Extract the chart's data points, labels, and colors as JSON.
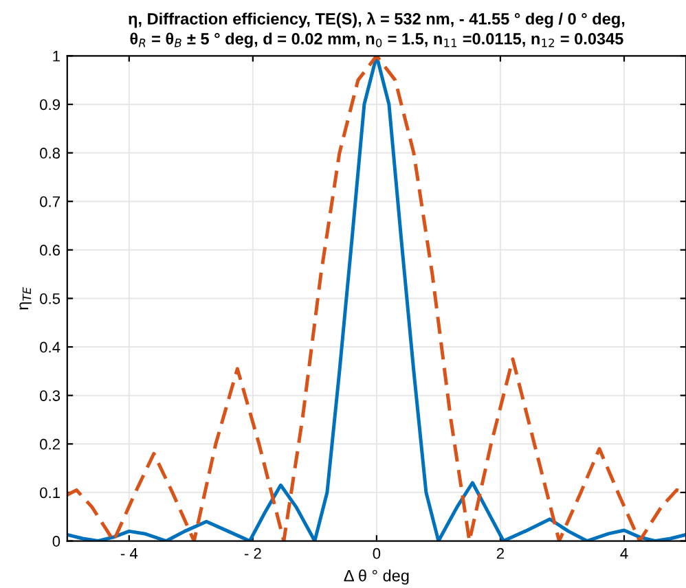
{
  "chart_data": {
    "type": "line",
    "title": "η, Diffraction efficiency, TE(S), λ = 532 nm, - 41.55 ° deg / 0 ° deg,\nθ$_{R}$ = θ$_{B}$ ± 5 ° deg, d = 0.02 mm, n$_{0}$ = 1.5, n$_{11}$ =0.0115, n$_{12}$ = 0.0345",
    "xlabel": "Δ θ ° deg",
    "ylabel": "η$_{TE}$",
    "series": [
      {
        "color": "#0072bd",
        "line_style": "solid",
        "x": [
          -5,
          -4.75,
          -4.5,
          -4.25,
          -4.0,
          -3.75,
          -3.4,
          -3.1,
          -2.75,
          -2.4,
          -2.05,
          -1.8,
          -1.55,
          -1.3,
          -1.0,
          -0.8,
          -0.6,
          -0.4,
          -0.2,
          0,
          0.2,
          0.4,
          0.6,
          0.8,
          1.0,
          1.3,
          1.55,
          1.8,
          2.05,
          2.4,
          2.8,
          3.1,
          3.4,
          3.75,
          4.0,
          4.25,
          4.5,
          4.75,
          5
        ],
        "values": [
          0.013,
          0.005,
          0.0,
          0.008,
          0.02,
          0.015,
          0.0,
          0.02,
          0.04,
          0.02,
          0.0,
          0.06,
          0.115,
          0.07,
          0.0,
          0.1,
          0.35,
          0.62,
          0.9,
          1.0,
          0.9,
          0.62,
          0.35,
          0.1,
          0.0,
          0.07,
          0.12,
          0.06,
          0.0,
          0.02,
          0.045,
          0.02,
          0.0,
          0.015,
          0.022,
          0.008,
          0.0,
          0.005,
          0.013
        ]
      },
      {
        "color": "#d95319",
        "line_style": "dashed",
        "x": [
          -5,
          -4.85,
          -4.6,
          -4.25,
          -3.9,
          -3.6,
          -3.3,
          -2.95,
          -2.6,
          -2.25,
          -1.9,
          -1.5,
          -1.2,
          -0.9,
          -0.6,
          -0.3,
          0,
          0.3,
          0.6,
          0.9,
          1.2,
          1.5,
          1.85,
          2.2,
          2.55,
          2.95,
          3.3,
          3.6,
          3.9,
          4.25,
          4.6,
          4.85,
          5
        ],
        "values": [
          0.095,
          0.105,
          0.07,
          0.0,
          0.1,
          0.18,
          0.1,
          0.0,
          0.2,
          0.355,
          0.2,
          0.0,
          0.25,
          0.55,
          0.8,
          0.95,
          1.0,
          0.95,
          0.8,
          0.55,
          0.25,
          0.0,
          0.2,
          0.375,
          0.2,
          0.0,
          0.1,
          0.19,
          0.1,
          0.0,
          0.07,
          0.105,
          0.1
        ]
      }
    ],
    "xlim": [
      -5,
      5
    ],
    "ylim": [
      0,
      1
    ],
    "xticks": [
      {
        "value": -4,
        "label": "- 4"
      },
      {
        "value": -2,
        "label": "- 2"
      },
      0,
      2,
      4
    ],
    "yticks": [
      0,
      0.1,
      0.2,
      0.3,
      0.4,
      0.5,
      0.6,
      0.7,
      0.8,
      0.9,
      1
    ],
    "grid": true,
    "legend": false
  }
}
